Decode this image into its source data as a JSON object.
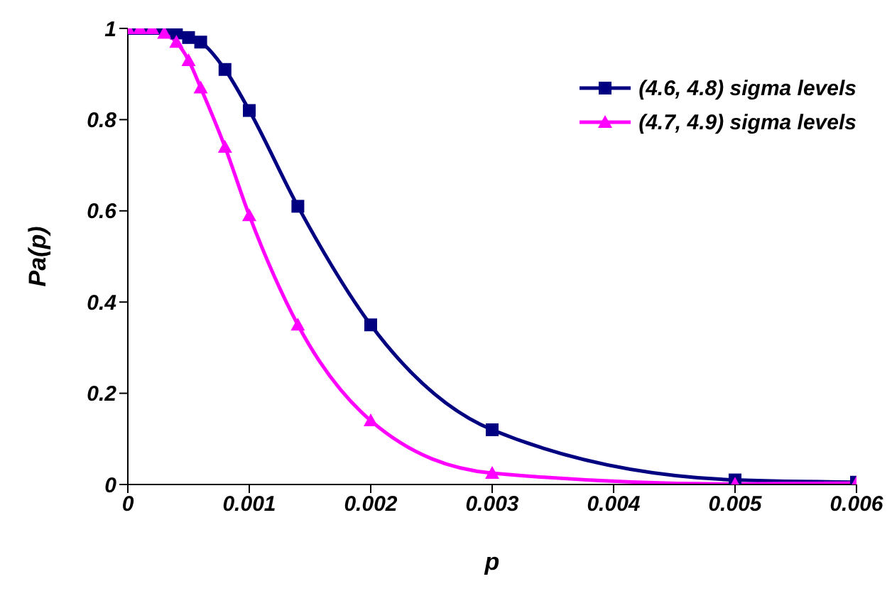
{
  "chart_data": {
    "type": "line",
    "xlabel": "p",
    "ylabel": "Pa(p)",
    "x": [
      0,
      0.0001,
      0.0002,
      0.0003,
      0.0004,
      0.0005,
      0.0006,
      0.0008,
      0.001,
      0.0014,
      0.002,
      0.003,
      0.005,
      0.006
    ],
    "series": [
      {
        "name": "(4.6, 4.8) sigma levels",
        "color": "#000080",
        "marker": "square",
        "values": [
          1,
          1,
          1,
          1,
          0.99,
          0.98,
          0.97,
          0.91,
          0.82,
          0.61,
          0.35,
          0.12,
          0.01,
          0.005
        ]
      },
      {
        "name": "(4.7, 4.9) sigma levels",
        "color": "#ff00ff",
        "marker": "triangle",
        "values": [
          1,
          1,
          1,
          0.99,
          0.97,
          0.93,
          0.87,
          0.74,
          0.59,
          0.35,
          0.14,
          0.025,
          0.001,
          0.003
        ]
      }
    ],
    "xlim": [
      0,
      0.006
    ],
    "xticks": [
      0,
      0.001,
      0.002,
      0.003,
      0.004,
      0.005,
      0.006
    ],
    "ylim": [
      0,
      1
    ],
    "yticks": [
      0,
      0.2,
      0.4,
      0.6,
      0.8,
      1
    ],
    "grid": false,
    "legend": "top right"
  }
}
